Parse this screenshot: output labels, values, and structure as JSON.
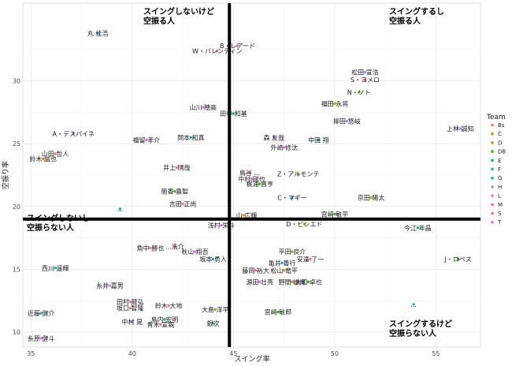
{
  "chart_data": {
    "type": "scatter",
    "title": "",
    "xlabel": "スイング率",
    "ylabel": "空振り率",
    "xlim": [
      34.6,
      57.2
    ],
    "ylim": [
      8.8,
      36.2
    ],
    "x_ticks": [
      35,
      40,
      45,
      50,
      55
    ],
    "y_ticks": [
      10,
      15,
      20,
      25,
      30
    ],
    "grid": true,
    "legend": {
      "title": "Team",
      "placement": "right",
      "entries": [
        {
          "name": "Bs",
          "color": "#F8766D"
        },
        {
          "name": "C",
          "color": "#D89000"
        },
        {
          "name": "D",
          "color": "#A3A500"
        },
        {
          "name": "DB",
          "color": "#39B600"
        },
        {
          "name": "E",
          "color": "#00BF7D"
        },
        {
          "name": "F",
          "color": "#00BFC4"
        },
        {
          "name": "G",
          "color": "#00B0F6"
        },
        {
          "name": "H",
          "color": "#9590FF"
        },
        {
          "name": "L",
          "color": "#E76BF3"
        },
        {
          "name": "M",
          "color": "#FF62BC"
        },
        {
          "name": "S",
          "color": "#F8766D"
        },
        {
          "name": "T",
          "color": "#E76BF3"
        }
      ]
    },
    "reference_lines": {
      "x": 44.8,
      "y": 19.0
    },
    "quadrant_labels": [
      {
        "text": [
          "スイングしないけど",
          "空振る人"
        ],
        "corner": "top-left-center"
      },
      {
        "text": [
          "スイングするし",
          "空振る人"
        ],
        "corner": "top-right"
      },
      {
        "text": [
          "スイングしないし",
          "空振らない人"
        ],
        "corner": "middle-left"
      },
      {
        "text": [
          "スイングするけど",
          "空振らない人"
        ],
        "corner": "bottom-right"
      }
    ],
    "points": [
      {
        "label": "丸 佳浩",
        "x": 38.3,
        "y": 33.8,
        "team": "G"
      },
      {
        "label": "B・レアード",
        "x": 45.2,
        "y": 32.8,
        "team": "M"
      },
      {
        "label": "W・バレンティン",
        "x": 44.2,
        "y": 32.4,
        "team": "S"
      },
      {
        "label": "松田 宣浩",
        "x": 51.5,
        "y": 30.7,
        "team": "H"
      },
      {
        "label": "S・ヨメロ",
        "x": 51.5,
        "y": 30.1,
        "team": "Bs"
      },
      {
        "label": "N・ソト",
        "x": 51.2,
        "y": 29.1,
        "team": "DB"
      },
      {
        "label": "福田 永将",
        "x": 50.0,
        "y": 28.2,
        "team": "D"
      },
      {
        "label": "山川 穂高",
        "x": 43.5,
        "y": 27.9,
        "team": "L"
      },
      {
        "label": "田中 和基",
        "x": 45.0,
        "y": 27.4,
        "team": "E"
      },
      {
        "label": "柳田 悠岐",
        "x": 50.6,
        "y": 26.8,
        "team": "H"
      },
      {
        "label": "上林 誠知",
        "x": 56.2,
        "y": 26.2,
        "team": "H"
      },
      {
        "label": "A・デスパイネ",
        "x": 37.1,
        "y": 25.8,
        "team": "H"
      },
      {
        "label": "福留 孝介",
        "x": 40.7,
        "y": 25.3,
        "team": "T"
      },
      {
        "label": "岡本 和真",
        "x": 42.9,
        "y": 25.5,
        "team": "G"
      },
      {
        "label": "森 友哉",
        "x": 47.0,
        "y": 25.5,
        "team": "L"
      },
      {
        "label": "中田 翔",
        "x": 49.2,
        "y": 25.3,
        "team": "F"
      },
      {
        "label": "外崎 修汰",
        "x": 47.5,
        "y": 24.7,
        "team": "L"
      },
      {
        "label": "山田 哲人",
        "x": 36.2,
        "y": 24.2,
        "team": "S"
      },
      {
        "label": "鈴木 誠也",
        "x": 35.6,
        "y": 23.8,
        "team": "C"
      },
      {
        "label": "井上 晴哉",
        "x": 42.2,
        "y": 23.1,
        "team": "M"
      },
      {
        "label": "鳥谷 ...",
        "x": 45.8,
        "y": 22.7,
        "team": "T"
      },
      {
        "label": "Z・アルモンテ",
        "x": 48.2,
        "y": 22.6,
        "team": "D"
      },
      {
        "label": "中村 剛也",
        "x": 45.9,
        "y": 22.2,
        "team": "L"
      },
      {
        "label": "梶浦 直亨",
        "x": 46.3,
        "y": 21.8,
        "team": "DB"
      },
      {
        "label": "筒香 嘉智",
        "x": 42.1,
        "y": 21.2,
        "team": "DB"
      },
      {
        "label": "京田 陽太",
        "x": 51.8,
        "y": 20.7,
        "team": "D"
      },
      {
        "label": "C・マギー",
        "x": 47.9,
        "y": 20.7,
        "team": "G"
      },
      {
        "label": "吉田 正尚",
        "x": 42.5,
        "y": 20.2,
        "team": "Bs"
      },
      {
        "label": "...",
        "x": 39.4,
        "y": 19.8,
        "team": "E"
      },
      {
        "label": "...山 広輝",
        "x": 45.5,
        "y": 19.3,
        "team": "C"
      },
      {
        "label": "宮崎 敏平",
        "x": 50.0,
        "y": 19.4,
        "team": "DB"
      },
      {
        "label": "D・ビシエド",
        "x": 48.5,
        "y": 18.6,
        "team": "D"
      },
      {
        "label": "浅村 栄斗",
        "x": 44.4,
        "y": 18.5,
        "team": "L"
      },
      {
        "label": "今江 年晶",
        "x": 54.1,
        "y": 18.3,
        "team": "E"
      },
      {
        "label": "角中 勝也",
        "x": 40.9,
        "y": 16.7,
        "team": "M"
      },
      {
        "label": "...浩介",
        "x": 42.1,
        "y": 16.8,
        "team": "S"
      },
      {
        "label": "秋山 翔吾",
        "x": 43.1,
        "y": 16.4,
        "team": "L"
      },
      {
        "label": "平田 良介",
        "x": 47.9,
        "y": 16.4,
        "team": "D"
      },
      {
        "label": "J・ロペス",
        "x": 56.1,
        "y": 15.8,
        "team": "DB"
      },
      {
        "label": "坂本 勇人",
        "x": 44.0,
        "y": 15.8,
        "team": "G"
      },
      {
        "label": "安達 了一",
        "x": 48.8,
        "y": 15.8,
        "team": "Bs"
      },
      {
        "label": "亀井 善行",
        "x": 47.4,
        "y": 15.5,
        "team": "G"
      },
      {
        "label": "西川 遥輝",
        "x": 36.2,
        "y": 15.1,
        "team": "F"
      },
      {
        "label": "藤岡 裕大",
        "x": 46.1,
        "y": 14.9,
        "team": "M"
      },
      {
        "label": "松山 竜平",
        "x": 47.5,
        "y": 14.9,
        "team": "C"
      },
      {
        "label": "源田 壮亮",
        "x": 46.3,
        "y": 14.0,
        "team": "L"
      },
      {
        "label": "野間 峻祥",
        "x": 47.9,
        "y": 14.0,
        "team": "C"
      },
      {
        "label": "大和 卓也",
        "x": 48.7,
        "y": 14.0,
        "team": "DB"
      },
      {
        "label": "糸井 嘉男",
        "x": 38.9,
        "y": 13.7,
        "team": "T"
      },
      {
        "label": "田村 龍弘",
        "x": 39.9,
        "y": 12.4,
        "team": "M"
      },
      {
        "label": "坂口 智隆",
        "x": 39.9,
        "y": 11.9,
        "team": "S"
      },
      {
        "label": "鈴木 大地",
        "x": 41.8,
        "y": 12.1,
        "team": "M"
      },
      {
        "label": "大島 洋平",
        "x": 44.1,
        "y": 11.8,
        "team": "D"
      },
      {
        "label": "宮崎 敏郎",
        "x": 47.2,
        "y": 11.6,
        "team": "DB"
      },
      {
        "label": "...",
        "x": 53.9,
        "y": 12.2,
        "team": "F"
      },
      {
        "label": "近藤 健介",
        "x": 35.5,
        "y": 11.5,
        "team": "F"
      },
      {
        "label": "中村 晃",
        "x": 40.0,
        "y": 10.8,
        "team": "H"
      },
      {
        "label": "島内 宏明",
        "x": 41.6,
        "y": 11.0,
        "team": "E"
      },
      {
        "label": "青木 宣親",
        "x": 41.4,
        "y": 10.6,
        "team": "S"
      },
      {
        "label": "銀次",
        "x": 44.0,
        "y": 10.7,
        "team": "E"
      },
      {
        "label": "糸原 健斗",
        "x": 35.5,
        "y": 9.5,
        "team": "T"
      }
    ]
  }
}
